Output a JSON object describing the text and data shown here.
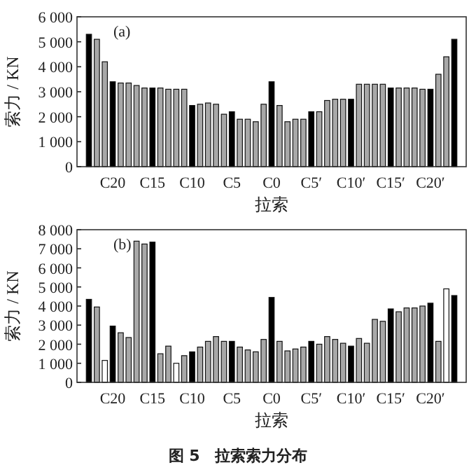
{
  "chart_data": [
    {
      "type": "bar",
      "title": "(a)",
      "xlabel": "拉索",
      "ylabel": "索力 / KN",
      "categories": [
        null,
        null,
        null,
        "C20",
        null,
        null,
        null,
        null,
        "C15",
        null,
        null,
        null,
        null,
        "C10",
        null,
        null,
        null,
        null,
        "C5",
        null,
        null,
        null,
        null,
        "C0",
        null,
        null,
        null,
        null,
        "C5′",
        null,
        null,
        null,
        null,
        "C10′",
        null,
        null,
        null,
        null,
        "C15′",
        null,
        null,
        null,
        null,
        "C20′",
        null,
        null,
        null
      ],
      "values": [
        5300,
        5100,
        4200,
        3400,
        3350,
        3350,
        3250,
        3150,
        3150,
        3150,
        3100,
        3100,
        3100,
        2450,
        2500,
        2550,
        2500,
        2100,
        2200,
        1900,
        1900,
        1800,
        2500,
        3400,
        2450,
        1800,
        1900,
        1900,
        2200,
        2200,
        2650,
        2700,
        2700,
        2700,
        3300,
        3300,
        3300,
        3300,
        3150,
        3150,
        3150,
        3150,
        3100,
        3100,
        3700,
        4400,
        5100
      ],
      "colors": [
        "#000000",
        "#a8a8a8",
        "#a8a8a8",
        "#000000",
        "#a8a8a8",
        "#a8a8a8",
        "#a8a8a8",
        "#a8a8a8",
        "#000000",
        "#a8a8a8",
        "#a8a8a8",
        "#a8a8a8",
        "#a8a8a8",
        "#000000",
        "#a8a8a8",
        "#a8a8a8",
        "#a8a8a8",
        "#a8a8a8",
        "#000000",
        "#a8a8a8",
        "#a8a8a8",
        "#a8a8a8",
        "#a8a8a8",
        "#000000",
        "#a8a8a8",
        "#a8a8a8",
        "#a8a8a8",
        "#a8a8a8",
        "#000000",
        "#a8a8a8",
        "#a8a8a8",
        "#a8a8a8",
        "#a8a8a8",
        "#000000",
        "#a8a8a8",
        "#a8a8a8",
        "#a8a8a8",
        "#a8a8a8",
        "#000000",
        "#a8a8a8",
        "#a8a8a8",
        "#a8a8a8",
        "#a8a8a8",
        "#000000",
        "#a8a8a8",
        "#a8a8a8",
        "#000000"
      ],
      "ylim": [
        0,
        6000
      ],
      "yticks": [
        0,
        {
          "value": 1000,
          "label": "1 000"
        },
        {
          "value": 2000,
          "label": "2 000"
        },
        {
          "value": 3000,
          "label": "3 000"
        },
        {
          "value": 4000,
          "label": "4 000"
        },
        {
          "value": 5000,
          "label": "5 000"
        },
        {
          "value": 6000,
          "label": "6 000"
        }
      ]
    },
    {
      "type": "bar",
      "title": "(b)",
      "xlabel": "拉索",
      "ylabel": "索力 / KN",
      "annotations": [
        "图 5　拉索索力分布"
      ],
      "categories": [
        null,
        null,
        null,
        "C20",
        null,
        null,
        null,
        null,
        "C15",
        null,
        null,
        null,
        null,
        "C10",
        null,
        null,
        null,
        null,
        "C5",
        null,
        null,
        null,
        null,
        "C0",
        null,
        null,
        null,
        null,
        "C5′",
        null,
        null,
        null,
        null,
        "C10′",
        null,
        null,
        null,
        null,
        "C15′",
        null,
        null,
        null,
        null,
        "C20′",
        null,
        null,
        null
      ],
      "values": [
        4350,
        3950,
        1150,
        2950,
        2600,
        2350,
        7400,
        7250,
        7350,
        1500,
        1900,
        1000,
        1400,
        1600,
        1850,
        2150,
        2400,
        2150,
        2150,
        1850,
        1700,
        1600,
        2250,
        4450,
        2150,
        1650,
        1750,
        1850,
        2150,
        2000,
        2400,
        2250,
        2050,
        1900,
        2300,
        2050,
        3300,
        3200,
        3850,
        3700,
        3900,
        3900,
        4000,
        4150,
        2150,
        4900,
        4550
      ],
      "colors": [
        "#000000",
        "#a8a8a8",
        "#ffffff",
        "#000000",
        "#a8a8a8",
        "#a8a8a8",
        "#a8a8a8",
        "#a8a8a8",
        "#000000",
        "#a8a8a8",
        "#a8a8a8",
        "#ffffff",
        "#a8a8a8",
        "#000000",
        "#a8a8a8",
        "#a8a8a8",
        "#a8a8a8",
        "#a8a8a8",
        "#000000",
        "#a8a8a8",
        "#a8a8a8",
        "#a8a8a8",
        "#a8a8a8",
        "#000000",
        "#a8a8a8",
        "#a8a8a8",
        "#a8a8a8",
        "#a8a8a8",
        "#000000",
        "#a8a8a8",
        "#a8a8a8",
        "#a8a8a8",
        "#a8a8a8",
        "#000000",
        "#a8a8a8",
        "#a8a8a8",
        "#a8a8a8",
        "#a8a8a8",
        "#000000",
        "#a8a8a8",
        "#a8a8a8",
        "#a8a8a8",
        "#a8a8a8",
        "#000000",
        "#a8a8a8",
        "#ffffff",
        "#000000"
      ],
      "ylim": [
        0,
        8000
      ],
      "yticks": [
        0,
        {
          "value": 1000,
          "label": "1 000"
        },
        {
          "value": 2000,
          "label": "2 000"
        },
        {
          "value": 3000,
          "label": "3 000"
        },
        {
          "value": 4000,
          "label": "4 000"
        },
        {
          "value": 5000,
          "label": "5 000"
        },
        {
          "value": 6000,
          "label": "6 000"
        },
        {
          "value": 7000,
          "label": "7 000"
        },
        {
          "value": 8000,
          "label": "8 000"
        }
      ]
    }
  ]
}
